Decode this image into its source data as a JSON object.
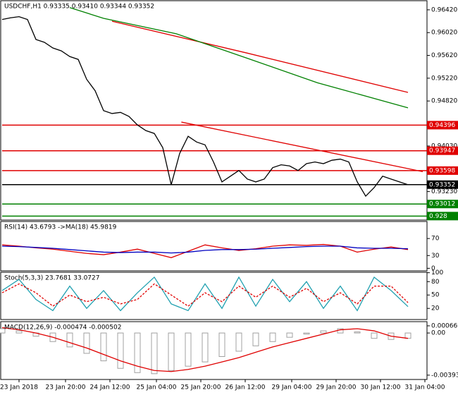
{
  "chart_data": [
    {
      "type": "line",
      "title": "USDCHF,H1 0.93335 0.93410 0.93344 0.93352",
      "ylim": [
        0.9273,
        0.9658
      ],
      "yticks": [
        {
          "value": 0.9642,
          "label": "0.96420"
        },
        {
          "value": 0.9602,
          "label": "0.96020"
        },
        {
          "value": 0.9562,
          "label": "0.95620"
        },
        {
          "value": 0.9522,
          "label": "0.95220"
        },
        {
          "value": 0.9482,
          "label": "0.94820"
        },
        {
          "value": 0.9403,
          "label": "0.94030"
        },
        {
          "value": 0.9323,
          "label": "0.93230"
        }
      ],
      "xlim": [
        0,
        50
      ],
      "x": [
        0,
        1,
        2,
        3,
        4,
        5,
        6,
        7,
        8,
        9,
        10,
        11,
        12,
        13,
        14,
        15,
        16,
        17,
        18,
        19,
        20,
        21,
        22,
        23,
        24,
        25,
        26,
        27,
        28,
        29,
        30,
        31,
        32,
        33,
        34,
        35,
        36,
        37,
        38,
        39,
        40,
        41,
        42,
        43,
        44,
        45,
        46,
        47,
        48
      ],
      "series": [
        {
          "color": "#000000",
          "values": [
            0.9625,
            0.9628,
            0.963,
            0.9625,
            0.959,
            0.9585,
            0.9575,
            0.957,
            0.956,
            0.9555,
            0.952,
            0.95,
            0.9465,
            0.946,
            0.9462,
            0.9455,
            0.944,
            0.943,
            0.9425,
            0.94,
            0.9335,
            0.939,
            0.942,
            0.941,
            0.9405,
            0.9375,
            0.934,
            0.935,
            0.936,
            0.9345,
            0.934,
            0.9345,
            0.9365,
            0.937,
            0.9368,
            0.936,
            0.9372,
            0.9375,
            0.9372,
            0.9378,
            0.938,
            0.9375,
            0.934,
            0.9315,
            0.933,
            0.935,
            0.9345,
            0.934,
            0.9335
          ]
        },
        {
          "color": "#e00000",
          "x": [
            13,
            29,
            48
          ],
          "values": [
            0.9622,
            0.9566,
            0.9497
          ]
        },
        {
          "color": "#008000",
          "x": [
            8,
            12,
            20.6,
            29,
            37.3,
            48
          ],
          "values": [
            0.9646,
            0.9627,
            0.96,
            0.9557,
            0.9514,
            0.947
          ]
        },
        {
          "color": "#e00000",
          "x": [
            21.2,
            49.75
          ],
          "values": [
            0.9445,
            0.9358
          ]
        }
      ],
      "levels": [
        {
          "value": 0.94396,
          "color": "#e00000"
        },
        {
          "value": 0.93947,
          "color": "#e00000"
        },
        {
          "value": 0.93598,
          "color": "#e00000"
        },
        {
          "value": 0.93352,
          "color": "#000000"
        },
        {
          "value": 0.93012,
          "color": "#008000"
        },
        {
          "value": 0.928,
          "color": "#008000"
        }
      ]
    },
    {
      "type": "line",
      "title": "RSI(14) 43.6793 ->MA(18) 45.9819",
      "ylim": [
        -6,
        110
      ],
      "yticks": [
        70,
        30,
        0
      ],
      "xlim": [
        0,
        50
      ],
      "x": [
        0,
        2,
        4,
        6,
        8,
        10,
        12,
        14,
        16,
        18,
        20,
        22,
        24,
        26,
        28,
        30,
        32,
        34,
        36,
        38,
        40,
        42,
        44,
        46,
        48
      ],
      "series": [
        {
          "color": "#e00000",
          "values": [
            55,
            52,
            48,
            45,
            40,
            35,
            32,
            38,
            45,
            35,
            25,
            40,
            55,
            48,
            42,
            46,
            52,
            55,
            54,
            56,
            52,
            38,
            45,
            50,
            44
          ]
        },
        {
          "color": "#0000c0",
          "values": [
            52,
            51,
            49,
            47,
            44,
            41,
            38,
            37,
            38,
            38,
            36,
            38,
            42,
            44,
            44,
            45,
            47,
            49,
            51,
            52,
            52,
            48,
            47,
            47,
            46
          ]
        }
      ]
    },
    {
      "type": "line",
      "title": "Stoch(5,3,3) 23.7681 33.0727",
      "ylim": [
        -5,
        101
      ],
      "yticks": [
        100,
        80,
        50,
        20
      ],
      "xlim": [
        0,
        50
      ],
      "x": [
        0,
        2,
        4,
        6,
        8,
        10,
        12,
        14,
        16,
        18,
        20,
        22,
        24,
        26,
        28,
        30,
        32,
        34,
        36,
        38,
        40,
        42,
        44,
        46,
        48
      ],
      "series": [
        {
          "color": "#20a0b0",
          "values": [
            60,
            85,
            40,
            15,
            70,
            20,
            60,
            15,
            55,
            90,
            30,
            15,
            75,
            20,
            90,
            25,
            85,
            35,
            80,
            20,
            70,
            15,
            90,
            60,
            24
          ]
        },
        {
          "color": "#e00000",
          "dashed": true,
          "values": [
            55,
            75,
            55,
            25,
            50,
            35,
            45,
            30,
            40,
            75,
            50,
            25,
            55,
            35,
            70,
            45,
            70,
            45,
            65,
            35,
            55,
            30,
            70,
            70,
            33
          ]
        }
      ]
    },
    {
      "type": "bar",
      "title": "MACD(12,26,9) -0.000474 -0.000502",
      "ylim": [
        -0.00434,
        0.00106
      ],
      "yticks": [
        0.000669,
        {
          "value": 0,
          "label": "0.00"
        },
        -0.003935
      ],
      "xlim": [
        0,
        50
      ],
      "xticks": [
        {
          "value": 2,
          "label": "23 Jan 2018"
        },
        {
          "value": 7.5,
          "label": "23 Jan 20:00"
        },
        {
          "value": 12.75,
          "label": "24 Jan 12:00"
        },
        {
          "value": 18.25,
          "label": "25 Jan 04:00"
        },
        {
          "value": 23.5,
          "label": "25 Jan 20:00"
        },
        {
          "value": 28.75,
          "label": "26 Jan 12:00"
        },
        {
          "value": 34.25,
          "label": "29 Jan 04:00"
        },
        {
          "value": 39.5,
          "label": "29 Jan 20:00"
        },
        {
          "value": 44.75,
          "label": "30 Jan 12:00"
        },
        {
          "value": 50,
          "label": "31 Jan 04:00"
        }
      ],
      "x": [
        0,
        2,
        4,
        6,
        8,
        10,
        12,
        14,
        16,
        18,
        20,
        22,
        24,
        26,
        28,
        30,
        32,
        34,
        36,
        38,
        40,
        42,
        44,
        46,
        48
      ],
      "series": [
        {
          "color": "#a0a0a0",
          "values": [
            0.0004,
            0.0002,
            -0.0003,
            -0.0008,
            -0.0013,
            -0.0019,
            -0.0026,
            -0.0033,
            -0.0037,
            -0.0038,
            -0.0035,
            -0.0031,
            -0.0027,
            -0.0022,
            -0.0017,
            -0.0012,
            -0.0008,
            -0.0004,
            -0.0001,
            0.0002,
            0.0004,
            0.0001,
            -0.0005,
            -0.0006,
            -0.0005
          ]
        },
        {
          "type": "line",
          "color": "#e00000",
          "values": [
            0.0005,
            0.0003,
            0,
            -0.0004,
            -0.0009,
            -0.0014,
            -0.002,
            -0.0026,
            -0.0031,
            -0.0035,
            -0.0036,
            -0.0034,
            -0.0031,
            -0.0027,
            -0.0023,
            -0.0018,
            -0.0013,
            -0.0009,
            -0.0005,
            -0.0001,
            0.0003,
            0.0004,
            0.0002,
            -0.0003,
            -0.0005
          ]
        }
      ]
    }
  ]
}
